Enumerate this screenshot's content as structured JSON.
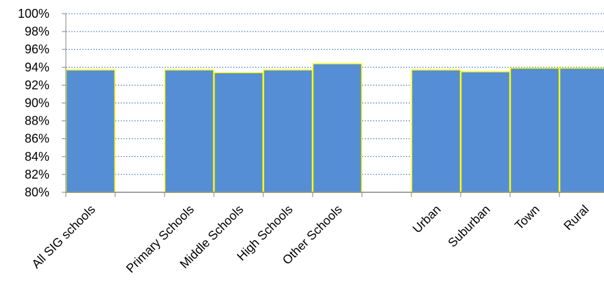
{
  "chart_data": {
    "type": "bar",
    "title": "",
    "xlabel": "",
    "ylabel": "",
    "ylim": [
      0.8,
      1.0
    ],
    "yticks": [
      "80%",
      "82%",
      "84%",
      "86%",
      "88%",
      "90%",
      "92%",
      "94%",
      "96%",
      "98%",
      "100%"
    ],
    "ytick_values": [
      0.8,
      0.82,
      0.84,
      0.86,
      0.88,
      0.9,
      0.92,
      0.94,
      0.96,
      0.98,
      1.0
    ],
    "grid": true,
    "categories": [
      "All SIG schools",
      "",
      "Primary Schools",
      "Middle Schools",
      "High Schools",
      "Other Schools",
      "",
      "Urban",
      "Suburban",
      "Town",
      "Rural"
    ],
    "values": [
      0.937,
      null,
      0.937,
      0.934,
      0.937,
      0.944,
      null,
      0.937,
      0.935,
      0.939,
      0.939
    ],
    "colors": {
      "bar_fill": "#558ED5",
      "bar_border": "#FFFF00",
      "grid": "#4F81BD",
      "axis": "#868686"
    }
  }
}
